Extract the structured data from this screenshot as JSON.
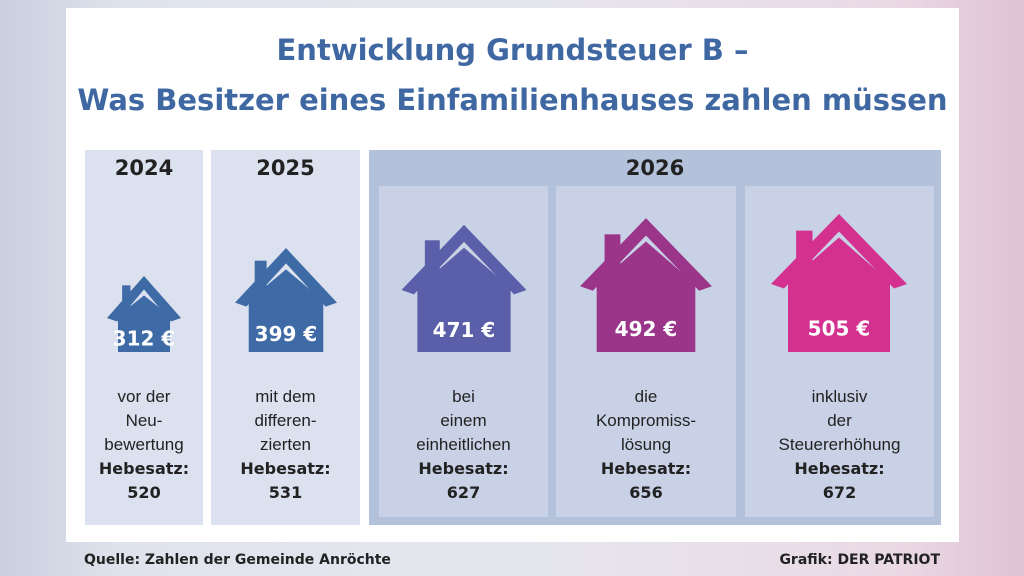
{
  "chart_data": {
    "type": "bar",
    "title": "Entwicklung Grundsteuer B –",
    "subtitle": "Was Besitzer eines Einfamilienhauses zahlen müssen",
    "years": [
      "2024",
      "2025",
      "2026"
    ],
    "categories": [
      "2024",
      "2025",
      "2026",
      "2026",
      "2026"
    ],
    "values": [
      312,
      399,
      471,
      492,
      505
    ],
    "value_labels": [
      "312 €",
      "399 €",
      "471 €",
      "492 €",
      "505 €"
    ],
    "unit": "€",
    "rate_label": "Hebesatz:",
    "descriptions": [
      [
        "vor der",
        "Neu-",
        "bewertung"
      ],
      [
        "mit dem",
        "differen-",
        "zierten"
      ],
      [
        "bei",
        "einem",
        "einheitlichen"
      ],
      [
        "die",
        "Kompromiss-",
        "lösung"
      ],
      [
        "inklusiv",
        "der",
        "Steuererhöhung"
      ]
    ],
    "hebesatz": [
      520,
      531,
      627,
      656,
      672
    ],
    "hebesatz_labels": [
      "520",
      "531",
      "627",
      "656",
      "672"
    ],
    "colors": [
      "#3e6aa6",
      "#3e6aa6",
      "#5b5ea8",
      "#9b3589",
      "#d3308f"
    ]
  },
  "footer": {
    "source": "Quelle: Zahlen der Gemeinde Anröchte",
    "credit": "Grafik: DER PATRIOT"
  }
}
